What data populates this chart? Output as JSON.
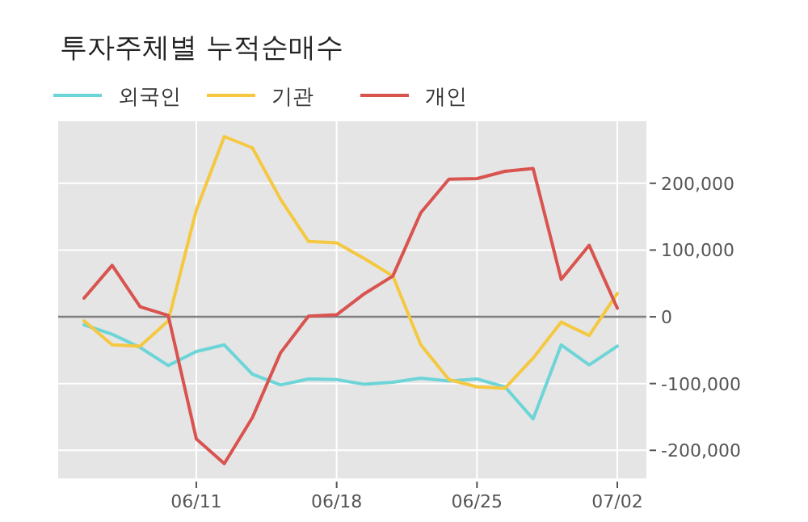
{
  "chart_data": {
    "type": "line",
    "title": "투자주체별 누적순매수",
    "categories": [
      null,
      null,
      null,
      null,
      "06/11",
      null,
      null,
      null,
      null,
      "06/18",
      null,
      null,
      null,
      null,
      "06/25",
      null,
      null,
      null,
      null,
      "07/02"
    ],
    "series": [
      {
        "name": "외국인",
        "color": "#6dd5d8",
        "values": [
          -12000,
          -26000,
          -46000,
          -73000,
          -52000,
          -42000,
          -86000,
          -102000,
          -93000,
          -94000,
          -101000,
          -98000,
          -92000,
          -96000,
          -93000,
          -105000,
          -153000,
          -42000,
          -72000,
          -44000
        ]
      },
      {
        "name": "기관",
        "color": "#f5c842",
        "values": [
          -6000,
          -42000,
          -44000,
          -6000,
          160000,
          270000,
          253000,
          176000,
          113000,
          111000,
          87000,
          61000,
          -42000,
          -94000,
          -105000,
          -107000,
          -62000,
          -8000,
          -28000,
          35000
        ]
      },
      {
        "name": "개인",
        "color": "#d9534f",
        "values": [
          28000,
          77000,
          15000,
          2000,
          -183000,
          -220000,
          -151000,
          -54000,
          1000,
          3000,
          35000,
          61000,
          156000,
          206000,
          207000,
          218000,
          222000,
          56000,
          107000,
          13000
        ]
      }
    ],
    "ylim": [
      -242000,
      293000
    ],
    "yticks": [
      {
        "value": -200000,
        "label": "-200,000"
      },
      {
        "value": -100000,
        "label": "-100,000"
      },
      0,
      {
        "value": 100000,
        "label": "100,000"
      },
      {
        "value": 200000,
        "label": "200,000"
      }
    ],
    "ref_lines": [
      {
        "axis": "y",
        "value": 0,
        "color": "#808080"
      }
    ],
    "grid": true,
    "legend": "top left",
    "marker": "none",
    "line_style": "solid"
  }
}
